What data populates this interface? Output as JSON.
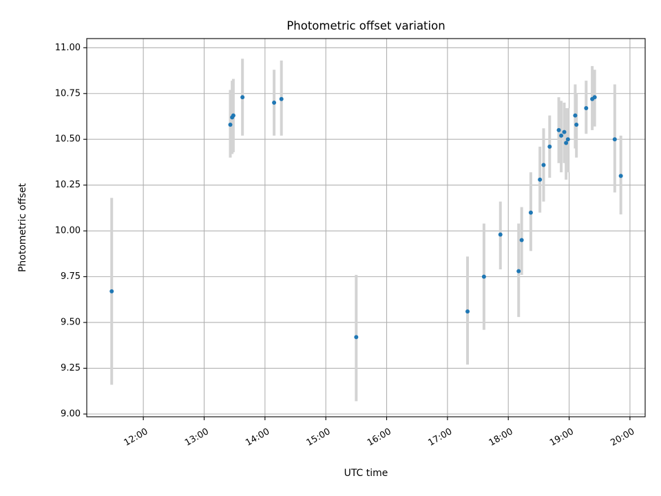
{
  "chart_data": {
    "type": "scatter",
    "title": "Photometric offset variation",
    "xlabel": "UTC time",
    "ylabel": "Photometric offset",
    "x_unit": "hours (UTC)",
    "xlim": [
      11.07,
      20.25
    ],
    "ylim": [
      8.985,
      11.05
    ],
    "grid": true,
    "x_ticks": [
      {
        "value": 12,
        "label": "12:00"
      },
      {
        "value": 13,
        "label": "13:00"
      },
      {
        "value": 14,
        "label": "14:00"
      },
      {
        "value": 15,
        "label": "15:00"
      },
      {
        "value": 16,
        "label": "16:00"
      },
      {
        "value": 17,
        "label": "17:00"
      },
      {
        "value": 18,
        "label": "18:00"
      },
      {
        "value": 19,
        "label": "19:00"
      },
      {
        "value": 20,
        "label": "20:00"
      }
    ],
    "y_ticks": [
      {
        "value": 9.0,
        "label": "9.00"
      },
      {
        "value": 9.25,
        "label": "9.25"
      },
      {
        "value": 9.5,
        "label": "9.50"
      },
      {
        "value": 9.75,
        "label": "9.75"
      },
      {
        "value": 10.0,
        "label": "10.00"
      },
      {
        "value": 10.25,
        "label": "10.25"
      },
      {
        "value": 10.5,
        "label": "10.50"
      },
      {
        "value": 10.75,
        "label": "10.75"
      },
      {
        "value": 11.0,
        "label": "11.00"
      }
    ],
    "point_color": "#1f77b4",
    "errorbar_color": "#d3d3d3",
    "points": [
      {
        "x": 11.48,
        "y": 9.67,
        "lo": 9.16,
        "hi": 10.18
      },
      {
        "x": 13.43,
        "y": 10.58,
        "lo": 10.4,
        "hi": 10.77
      },
      {
        "x": 13.46,
        "y": 10.62,
        "lo": 10.42,
        "hi": 10.82
      },
      {
        "x": 13.48,
        "y": 10.63,
        "lo": 10.43,
        "hi": 10.83
      },
      {
        "x": 13.63,
        "y": 10.73,
        "lo": 10.52,
        "hi": 10.94
      },
      {
        "x": 14.15,
        "y": 10.7,
        "lo": 10.52,
        "hi": 10.88
      },
      {
        "x": 14.27,
        "y": 10.72,
        "lo": 10.52,
        "hi": 10.93
      },
      {
        "x": 15.5,
        "y": 9.42,
        "lo": 9.07,
        "hi": 9.76
      },
      {
        "x": 17.33,
        "y": 9.56,
        "lo": 9.27,
        "hi": 9.86
      },
      {
        "x": 17.6,
        "y": 9.75,
        "lo": 9.46,
        "hi": 10.04
      },
      {
        "x": 17.87,
        "y": 9.98,
        "lo": 9.79,
        "hi": 10.16
      },
      {
        "x": 18.17,
        "y": 9.78,
        "lo": 9.53,
        "hi": 10.04
      },
      {
        "x": 18.22,
        "y": 9.95,
        "lo": 9.76,
        "hi": 10.13
      },
      {
        "x": 18.37,
        "y": 10.1,
        "lo": 9.89,
        "hi": 10.32
      },
      {
        "x": 18.52,
        "y": 10.28,
        "lo": 10.1,
        "hi": 10.46
      },
      {
        "x": 18.58,
        "y": 10.36,
        "lo": 10.16,
        "hi": 10.56
      },
      {
        "x": 18.68,
        "y": 10.46,
        "lo": 10.29,
        "hi": 10.63
      },
      {
        "x": 18.83,
        "y": 10.55,
        "lo": 10.37,
        "hi": 10.73
      },
      {
        "x": 18.87,
        "y": 10.52,
        "lo": 10.32,
        "hi": 10.71
      },
      {
        "x": 18.92,
        "y": 10.54,
        "lo": 10.37,
        "hi": 10.7
      },
      {
        "x": 18.95,
        "y": 10.48,
        "lo": 10.28,
        "hi": 10.67
      },
      {
        "x": 18.98,
        "y": 10.5,
        "lo": 10.32,
        "hi": 10.67
      },
      {
        "x": 19.1,
        "y": 10.63,
        "lo": 10.45,
        "hi": 10.8
      },
      {
        "x": 19.12,
        "y": 10.58,
        "lo": 10.4,
        "hi": 10.75
      },
      {
        "x": 19.28,
        "y": 10.67,
        "lo": 10.53,
        "hi": 10.82
      },
      {
        "x": 19.38,
        "y": 10.72,
        "lo": 10.55,
        "hi": 10.9
      },
      {
        "x": 19.42,
        "y": 10.73,
        "lo": 10.57,
        "hi": 10.88
      },
      {
        "x": 19.75,
        "y": 10.5,
        "lo": 10.21,
        "hi": 10.8
      },
      {
        "x": 19.85,
        "y": 10.3,
        "lo": 10.09,
        "hi": 10.52
      }
    ]
  }
}
